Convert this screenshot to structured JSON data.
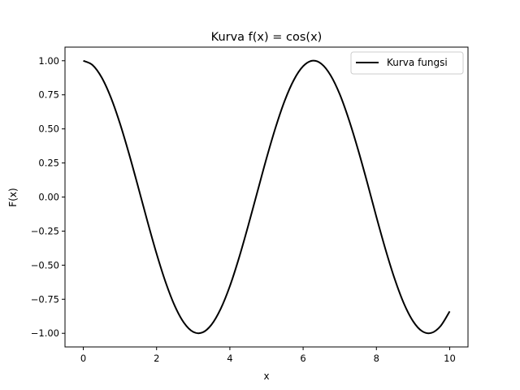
{
  "chart_data": {
    "type": "line",
    "title": "Kurva f(x) = cos(x)",
    "xlabel": "x",
    "ylabel": "F(x)",
    "xlim": [
      -0.5,
      10.5
    ],
    "ylim": [
      -1.1,
      1.1
    ],
    "xticks": [
      0,
      2,
      4,
      6,
      8,
      10
    ],
    "xtick_labels": [
      "0",
      "2",
      "4",
      "6",
      "8",
      "10"
    ],
    "yticks": [
      1.0,
      0.75,
      0.5,
      0.25,
      0.0,
      -0.25,
      -0.5,
      -0.75,
      -1.0
    ],
    "ytick_labels": [
      "1.00",
      "0.75",
      "0.50",
      "0.25",
      "0.00",
      "−0.25",
      "−0.50",
      "−0.75",
      "−1.00"
    ],
    "grid": false,
    "legend_position": "top-right",
    "series": [
      {
        "name": "Kurva fungsi",
        "color": "#000000",
        "x": [
          0,
          0.25,
          0.5,
          0.75,
          1,
          1.25,
          1.5,
          1.75,
          2,
          2.25,
          2.5,
          2.75,
          3,
          3.25,
          3.5,
          3.75,
          4,
          4.25,
          4.5,
          4.75,
          5,
          5.25,
          5.5,
          5.75,
          6,
          6.25,
          6.5,
          6.75,
          7,
          7.25,
          7.5,
          7.75,
          8,
          8.25,
          8.5,
          8.75,
          9,
          9.25,
          9.5,
          9.75,
          10
        ],
        "y": [
          1.0,
          0.969,
          0.878,
          0.732,
          0.54,
          0.315,
          0.071,
          -0.178,
          -0.416,
          -0.628,
          -0.801,
          -0.924,
          -0.99,
          -0.994,
          -0.936,
          -0.82,
          -0.654,
          -0.446,
          -0.211,
          0.037,
          0.284,
          0.512,
          0.709,
          0.861,
          0.96,
          1.0,
          0.977,
          0.893,
          0.754,
          0.567,
          0.347,
          0.106,
          -0.146,
          -0.386,
          -0.602,
          -0.781,
          -0.911,
          -0.985,
          -0.997,
          -0.947,
          -0.839
        ]
      }
    ]
  }
}
